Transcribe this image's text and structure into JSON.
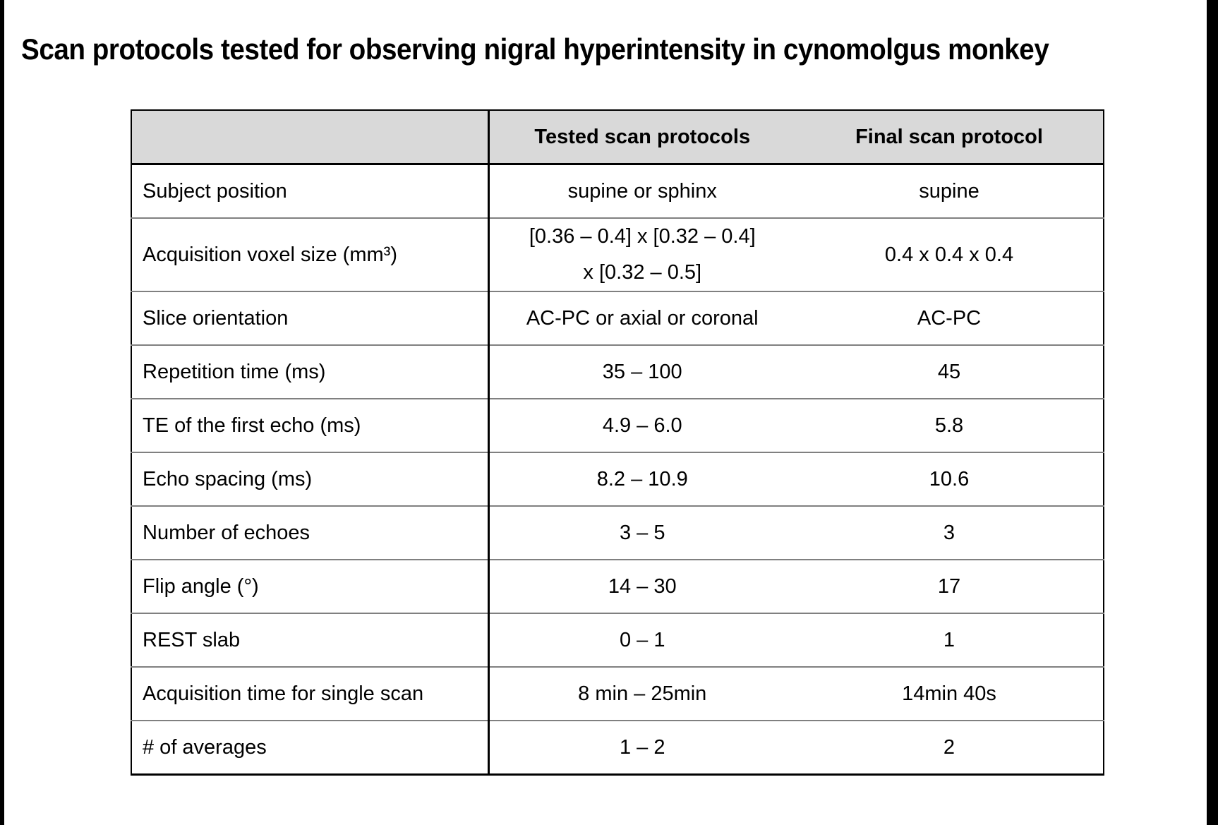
{
  "frame": {
    "left_bar_color": "#000000",
    "right_bar_color": "#000000"
  },
  "slide": {
    "title": "Scan protocols tested for observing nigral hyperintensity in cynomolgus monkey",
    "background": "#ffffff"
  },
  "chart_data": {
    "type": "table",
    "title": "Scan protocols tested for observing nigral hyperintensity in cynomolgus monkey",
    "header_bg": "#d9d9d9",
    "border_dark": "#000000",
    "border_light": "#808080",
    "columns": [
      "",
      "Tested scan protocols",
      "Final scan protocol"
    ],
    "rows": [
      {
        "label": "Subject position",
        "tested": "supine or sphinx",
        "final": "supine"
      },
      {
        "label": "Acquisition voxel size (mm³)",
        "tested": "[0.36 – 0.4] x [0.32 – 0.4]\nx [0.32 – 0.5]",
        "final": "0.4 x 0.4 x 0.4"
      },
      {
        "label": "Slice orientation",
        "tested": "AC-PC or axial or coronal",
        "final": "AC-PC"
      },
      {
        "label": "Repetition time (ms)",
        "tested": "35 – 100",
        "final": "45"
      },
      {
        "label": "TE of the first echo (ms)",
        "tested": "4.9 – 6.0",
        "final": "5.8"
      },
      {
        "label": "Echo spacing (ms)",
        "tested": "8.2 – 10.9",
        "final": "10.6"
      },
      {
        "label": "Number of echoes",
        "tested": "3 – 5",
        "final": "3"
      },
      {
        "label": "Flip angle (°)",
        "tested": "14 – 30",
        "final": "17"
      },
      {
        "label": "REST slab",
        "tested": "0 – 1",
        "final": "1"
      },
      {
        "label": "Acquisition time for single scan",
        "tested": "8 min – 25min",
        "final": "14min 40s"
      },
      {
        "label": "# of averages",
        "tested": "1 – 2",
        "final": "2"
      }
    ]
  }
}
